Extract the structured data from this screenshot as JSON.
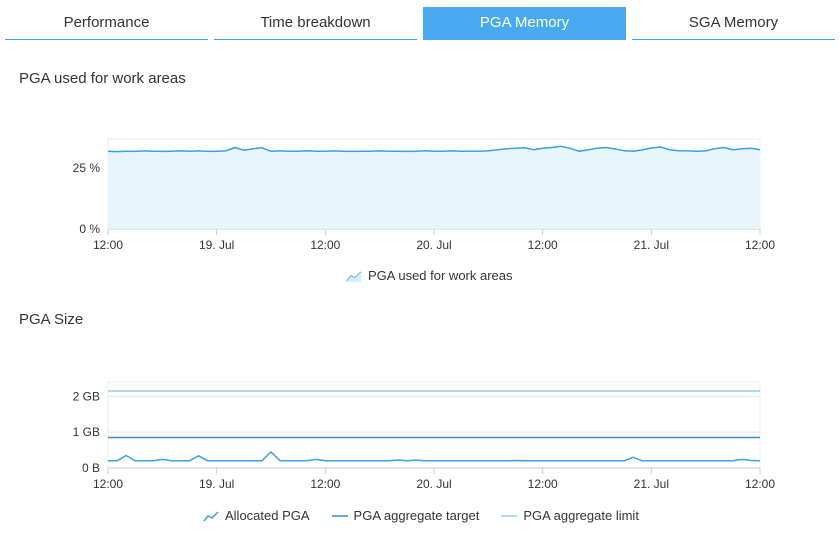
{
  "tabs": [
    {
      "label": "Performance",
      "active": false
    },
    {
      "label": "Time breakdown",
      "active": false
    },
    {
      "label": "PGA Memory",
      "active": true
    },
    {
      "label": "SGA Memory",
      "active": false
    }
  ],
  "colors": {
    "accent": "#49a9ee",
    "series_line": "#3aa0e0",
    "series_fill": "#e5f3fc",
    "target_line": "#3a88d0",
    "limit_line": "#8fd0ef",
    "grid": "#e6e6e6",
    "axis": "#c0d0e0"
  },
  "chart1": {
    "title": "PGA used for work areas"
  },
  "chart2": {
    "title": "PGA Size"
  },
  "chart_data": [
    {
      "type": "area",
      "title": "PGA used for work areas",
      "x_ticks": [
        "12:00",
        "19. Jul",
        "12:00",
        "20. Jul",
        "12:00",
        "21. Jul",
        "12:00"
      ],
      "y_ticks": [
        "0 %",
        "25 %"
      ],
      "ylim": [
        0,
        37
      ],
      "grid": true,
      "legend_position": "bottom-center",
      "series": [
        {
          "name": "PGA used for work areas",
          "x": [
            0,
            1,
            2,
            3,
            4,
            5,
            6,
            7,
            8,
            9,
            10,
            11,
            12,
            13,
            14,
            15,
            16,
            17,
            18,
            19,
            20,
            21,
            22,
            23,
            24,
            25,
            26,
            27,
            28,
            29,
            30,
            31,
            32,
            33,
            34,
            35,
            36,
            37,
            38,
            39,
            40,
            41,
            42,
            43,
            44,
            45,
            46,
            47,
            48,
            49,
            50,
            51,
            52,
            53,
            54,
            55,
            56,
            57,
            58,
            59,
            60,
            61,
            62,
            63,
            64,
            65,
            66,
            67,
            68,
            69,
            70,
            71,
            72
          ],
          "values": [
            32,
            31.8,
            32,
            31.9,
            32.1,
            32,
            31.9,
            32,
            32.1,
            32,
            32.1,
            31.9,
            32,
            32.1,
            33.5,
            32.4,
            33,
            33.4,
            32,
            32.1,
            32,
            32,
            32.2,
            32,
            32,
            32.1,
            32,
            31.9,
            32,
            32,
            32.1,
            32,
            32,
            31.9,
            32,
            32.2,
            32,
            32,
            32.1,
            32,
            32,
            32,
            32.1,
            32.6,
            33,
            33.2,
            33.4,
            32.6,
            33.2,
            33.5,
            34,
            33.2,
            32,
            32.5,
            33.2,
            33.5,
            32.9,
            32.2,
            32,
            32.5,
            33.3,
            33.7,
            32.6,
            32.2,
            32.1,
            32,
            32.1,
            33,
            33.5,
            32.6,
            33,
            33.2,
            32.6
          ]
        }
      ]
    },
    {
      "type": "line",
      "title": "PGA Size",
      "x_ticks": [
        "12:00",
        "19. Jul",
        "12:00",
        "20. Jul",
        "12:00",
        "21. Jul",
        "12:00"
      ],
      "y_ticks": [
        "0 B",
        "1 GB",
        "2 GB"
      ],
      "ylim": [
        0,
        2.4
      ],
      "grid": true,
      "legend_position": "bottom-center",
      "series": [
        {
          "name": "Allocated PGA",
          "x": [
            0,
            1,
            2,
            3,
            4,
            5,
            6,
            7,
            8,
            9,
            10,
            11,
            12,
            13,
            14,
            15,
            16,
            17,
            18,
            19,
            20,
            21,
            22,
            23,
            24,
            25,
            26,
            27,
            28,
            29,
            30,
            31,
            32,
            33,
            34,
            35,
            36,
            37,
            38,
            39,
            40,
            41,
            42,
            43,
            44,
            45,
            46,
            47,
            48,
            49,
            50,
            51,
            52,
            53,
            54,
            55,
            56,
            57,
            58,
            59,
            60,
            61,
            62,
            63,
            64,
            65,
            66,
            67,
            68,
            69,
            70,
            71,
            72
          ],
          "values": [
            0.2,
            0.2,
            0.35,
            0.2,
            0.2,
            0.2,
            0.24,
            0.2,
            0.2,
            0.2,
            0.34,
            0.2,
            0.2,
            0.2,
            0.2,
            0.2,
            0.2,
            0.2,
            0.45,
            0.2,
            0.2,
            0.2,
            0.2,
            0.24,
            0.2,
            0.2,
            0.2,
            0.2,
            0.2,
            0.2,
            0.2,
            0.2,
            0.22,
            0.2,
            0.22,
            0.2,
            0.2,
            0.2,
            0.2,
            0.2,
            0.2,
            0.2,
            0.2,
            0.2,
            0.2,
            0.21,
            0.2,
            0.2,
            0.2,
            0.2,
            0.2,
            0.2,
            0.2,
            0.2,
            0.2,
            0.2,
            0.2,
            0.2,
            0.3,
            0.2,
            0.2,
            0.2,
            0.2,
            0.2,
            0.2,
            0.2,
            0.2,
            0.2,
            0.2,
            0.2,
            0.24,
            0.21,
            0.2
          ]
        },
        {
          "name": "PGA aggregate target",
          "x": [
            0,
            72
          ],
          "values": [
            0.85,
            0.85
          ]
        },
        {
          "name": "PGA aggregate limit",
          "x": [
            0,
            72
          ],
          "values": [
            2.15,
            2.15
          ]
        }
      ]
    }
  ]
}
